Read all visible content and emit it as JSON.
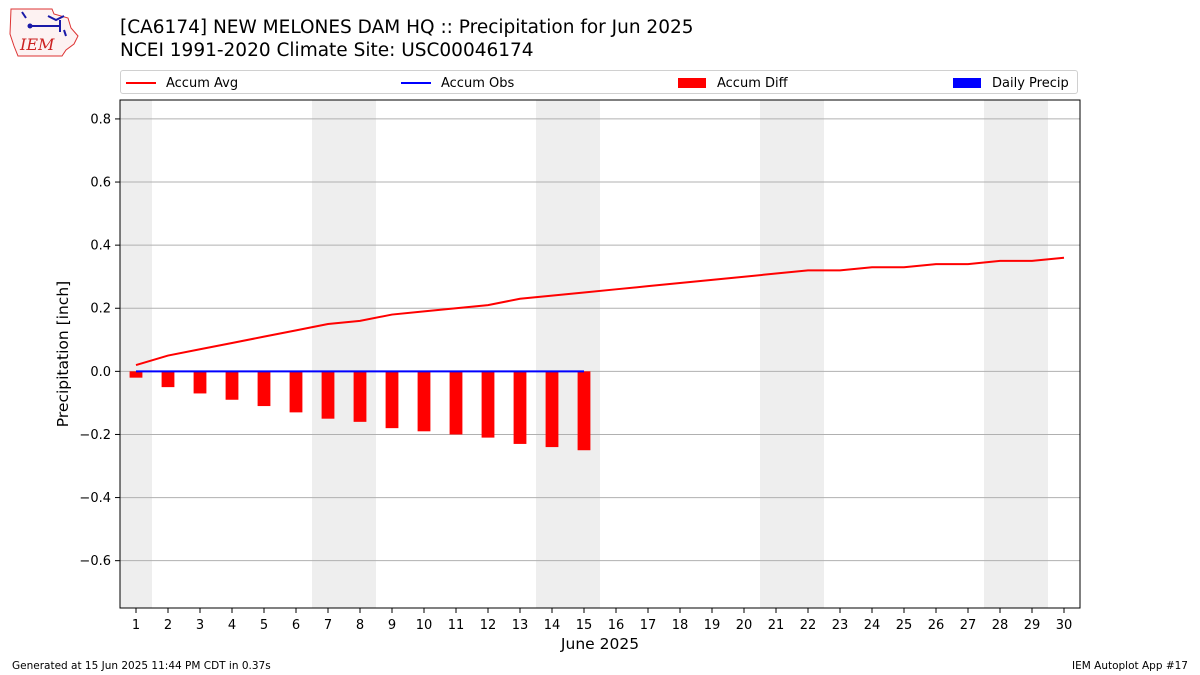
{
  "header": {
    "title": "[CA6174] NEW MELONES DAM HQ :: Precipitation for Jun 2025",
    "subtitle": "NCEI 1991-2020 Climate Site: USC00046174"
  },
  "logo": {
    "text": "IEM"
  },
  "legend": {
    "items": [
      {
        "label": "Accum Avg",
        "kind": "line",
        "color": "#ff0000"
      },
      {
        "label": "Accum Obs",
        "kind": "line",
        "color": "#0000ff"
      },
      {
        "label": "Accum Diff",
        "kind": "box",
        "color": "#ff0000"
      },
      {
        "label": "Daily Precip",
        "kind": "box",
        "color": "#0000ff"
      }
    ]
  },
  "footer": {
    "left": "Generated at 15 Jun 2025 11:44 PM CDT in 0.37s",
    "right": "IEM Autoplot App #17"
  },
  "chart_data": {
    "type": "bar",
    "xlabel": "June 2025",
    "ylabel": "Precipitation [inch]",
    "xlim": [
      0.5,
      30.5
    ],
    "ylim": [
      -0.75,
      0.86
    ],
    "yticks": [
      -0.6,
      -0.4,
      -0.2,
      0.0,
      0.2,
      0.4,
      0.6,
      0.8
    ],
    "ytick_labels": [
      "−0.6",
      "−0.4",
      "−0.2",
      "0.0",
      "0.2",
      "0.4",
      "0.6",
      "0.8"
    ],
    "days": [
      1,
      2,
      3,
      4,
      5,
      6,
      7,
      8,
      9,
      10,
      11,
      12,
      13,
      14,
      15,
      16,
      17,
      18,
      19,
      20,
      21,
      22,
      23,
      24,
      25,
      26,
      27,
      28,
      29,
      30
    ],
    "weekend_days": [
      1,
      7,
      8,
      14,
      15,
      21,
      22,
      28,
      29
    ],
    "grid": "horizontal",
    "series": [
      {
        "name": "Accum Avg",
        "type": "line",
        "color": "#ff0000",
        "x": [
          1,
          2,
          3,
          4,
          5,
          6,
          7,
          8,
          9,
          10,
          11,
          12,
          13,
          14,
          15,
          16,
          17,
          18,
          19,
          20,
          21,
          22,
          23,
          24,
          25,
          26,
          27,
          28,
          29,
          30
        ],
        "values": [
          0.02,
          0.05,
          0.07,
          0.09,
          0.11,
          0.13,
          0.15,
          0.16,
          0.18,
          0.19,
          0.2,
          0.21,
          0.23,
          0.24,
          0.25,
          0.26,
          0.27,
          0.28,
          0.29,
          0.3,
          0.31,
          0.32,
          0.32,
          0.33,
          0.33,
          0.34,
          0.34,
          0.35,
          0.35,
          0.36
        ]
      },
      {
        "name": "Accum Obs",
        "type": "line",
        "color": "#0000ff",
        "x": [
          1,
          2,
          3,
          4,
          5,
          6,
          7,
          8,
          9,
          10,
          11,
          12,
          13,
          14,
          15
        ],
        "values": [
          0,
          0,
          0,
          0,
          0,
          0,
          0,
          0,
          0,
          0,
          0,
          0,
          0,
          0,
          0
        ]
      },
      {
        "name": "Accum Diff",
        "type": "bar",
        "color": "#ff0000",
        "x": [
          1,
          2,
          3,
          4,
          5,
          6,
          7,
          8,
          9,
          10,
          11,
          12,
          13,
          14,
          15
        ],
        "values": [
          -0.02,
          -0.05,
          -0.07,
          -0.09,
          -0.11,
          -0.13,
          -0.15,
          -0.16,
          -0.18,
          -0.19,
          -0.2,
          -0.21,
          -0.23,
          -0.24,
          -0.25
        ]
      },
      {
        "name": "Daily Precip",
        "type": "bar",
        "color": "#0000ff",
        "x": [
          1,
          2,
          3,
          4,
          5,
          6,
          7,
          8,
          9,
          10,
          11,
          12,
          13,
          14,
          15
        ],
        "values": [
          0,
          0,
          0,
          0,
          0,
          0,
          0,
          0,
          0,
          0,
          0,
          0,
          0,
          0,
          0
        ]
      }
    ]
  }
}
